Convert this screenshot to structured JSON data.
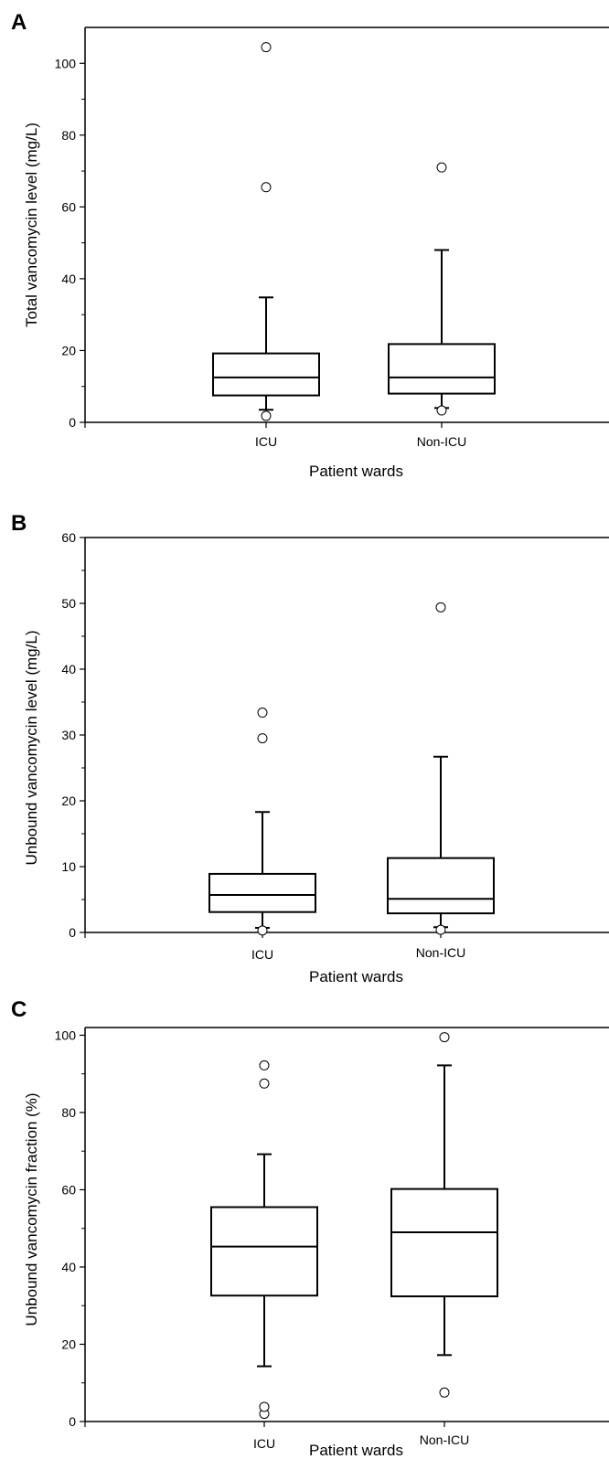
{
  "chart_data": [
    {
      "type": "boxplot",
      "panel": "A",
      "xlabel": "Patient wards",
      "ylabel": "Total vancomycin level (mg/L)",
      "ylim": [
        0,
        110
      ],
      "yticks": [
        0,
        20,
        40,
        60,
        80,
        100
      ],
      "categories": [
        "ICU",
        "Non-ICU"
      ],
      "boxes": [
        {
          "category": "ICU",
          "whisker_low": 3.5,
          "q1": 7.5,
          "median": 12.5,
          "q3": 19.2,
          "whisker_high": 34.8,
          "outliers": [
            1.8,
            65.5,
            104.5
          ]
        },
        {
          "category": "Non-ICU",
          "whisker_low": 4.0,
          "q1": 8.0,
          "median": 12.5,
          "q3": 21.8,
          "whisker_high": 48.0,
          "outliers": [
            3.3,
            71.0
          ]
        }
      ]
    },
    {
      "type": "boxplot",
      "panel": "B",
      "xlabel": "Patient wards",
      "ylabel": "Unbound vancomycin level (mg/L)",
      "ylim": [
        0,
        60
      ],
      "yticks": [
        0,
        10,
        20,
        30,
        40,
        50,
        60
      ],
      "categories": [
        "ICU",
        "Non-ICU"
      ],
      "boxes": [
        {
          "category": "ICU",
          "whisker_low": 0.7,
          "q1": 3.1,
          "median": 5.7,
          "q3": 8.9,
          "whisker_high": 18.3,
          "outliers": [
            0.3,
            29.5,
            33.4
          ]
        },
        {
          "category": "Non-ICU",
          "whisker_low": 0.8,
          "q1": 2.9,
          "median": 5.1,
          "q3": 11.3,
          "whisker_high": 26.7,
          "outliers": [
            0.4,
            49.4
          ]
        }
      ]
    },
    {
      "type": "boxplot",
      "panel": "C",
      "xlabel": "Patient wards",
      "ylabel": "Unbound vancomycin fraction (%)",
      "ylim": [
        0,
        102
      ],
      "yticks": [
        0,
        20,
        40,
        60,
        80,
        100
      ],
      "categories": [
        "ICU",
        "Non-ICU"
      ],
      "boxes": [
        {
          "category": "ICU",
          "whisker_low": 14.3,
          "q1": 32.6,
          "median": 45.3,
          "q3": 55.5,
          "whisker_high": 69.2,
          "outliers": [
            2.0,
            3.8,
            87.5,
            92.2
          ]
        },
        {
          "category": "Non-ICU",
          "whisker_low": 17.2,
          "q1": 32.4,
          "median": 49.0,
          "q3": 60.2,
          "whisker_high": 92.2,
          "outliers": [
            7.5,
            99.5
          ]
        }
      ]
    }
  ]
}
